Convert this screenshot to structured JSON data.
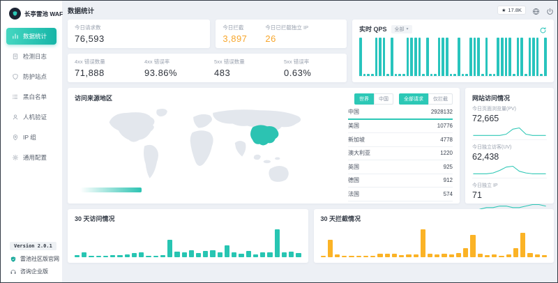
{
  "app": {
    "logo_text": "长亭雷池 WAF"
  },
  "sidebar": {
    "items": [
      {
        "label": "数据统计",
        "icon": "bar-chart-icon",
        "active": true
      },
      {
        "label": "检测日志",
        "icon": "log-icon",
        "active": false
      },
      {
        "label": "防护站点",
        "icon": "shield-icon",
        "active": false
      },
      {
        "label": "黑白名单",
        "icon": "list-icon",
        "active": false
      },
      {
        "label": "人机验证",
        "icon": "captcha-icon",
        "active": false
      },
      {
        "label": "IP 组",
        "icon": "ip-group-icon",
        "active": false
      },
      {
        "label": "通用配置",
        "icon": "gear-icon",
        "active": false
      }
    ],
    "version": "Version 2.0.1",
    "links": [
      {
        "label": "雷池社区版官网",
        "icon": "shield-badge-icon"
      },
      {
        "label": "咨询企业版",
        "icon": "headset-icon"
      }
    ]
  },
  "header": {
    "title": "数据统计",
    "github_stars": "17.8K"
  },
  "stats": {
    "requests_today": {
      "label": "今日请求数",
      "value": "76,593"
    },
    "blocks_today": {
      "label": "今日拦截",
      "value": "3,897"
    },
    "blocked_ips_today": {
      "label": "今日已拦截独立 IP",
      "value": "26"
    },
    "err4xx_count": {
      "label": "4xx 错误数量",
      "value": "71,888"
    },
    "err4xx_rate": {
      "label": "4xx 错误率",
      "value": "93.86%"
    },
    "err5xx_count": {
      "label": "5xx 错误数量",
      "value": "483"
    },
    "err5xx_rate": {
      "label": "5xx 错误率",
      "value": "0.63%"
    }
  },
  "qps": {
    "title": "实时 QPS",
    "filter_label": "全部"
  },
  "map_panel": {
    "title": "访问来源地区",
    "region_toggle": {
      "options": [
        "世界",
        "中国"
      ],
      "active": 0
    },
    "scope_toggle": {
      "options": [
        "全部请求",
        "仅拦截"
      ],
      "active": 0
    },
    "countries": [
      {
        "name": "中国",
        "value": "2928132"
      },
      {
        "name": "美国",
        "value": "10776"
      },
      {
        "name": "新加坡",
        "value": "4778"
      },
      {
        "name": "澳大利亚",
        "value": "1220"
      },
      {
        "name": "英国",
        "value": "925"
      },
      {
        "name": "德国",
        "value": "912"
      },
      {
        "name": "法国",
        "value": "574"
      }
    ]
  },
  "site_panel": {
    "title": "网站访问情况",
    "metrics": [
      {
        "key": "pv",
        "label": "今日页面浏览量(PV)",
        "value": "72,665"
      },
      {
        "key": "uv",
        "label": "今日独立访客(UV)",
        "value": "62,438"
      },
      {
        "key": "ip",
        "label": "今日独立 IP",
        "value": "71"
      }
    ]
  },
  "colors": {
    "accent_teal": "#2cc8b6",
    "qps_bar": "#28c4bd",
    "visits_bar": "#27c5b2",
    "blocks_bar": "#fbb326",
    "orange_value": "#f7a62c",
    "sparkline": "#2fc7b6"
  },
  "chart_data": {
    "qps": {
      "type": "bar",
      "title": "实时 QPS",
      "values": [
        1,
        0.06,
        0.06,
        0.06,
        1,
        1,
        1,
        0.06,
        1,
        0.06,
        0.06,
        0.06,
        1,
        1,
        1,
        1,
        0.06,
        1,
        0.06,
        0.06,
        1,
        1,
        1,
        0.06,
        0.06,
        1,
        0.06,
        0.06,
        1,
        1,
        1,
        0.06,
        1,
        0.06,
        0.06,
        1,
        1,
        1,
        1,
        0.06,
        1,
        1,
        0.06,
        1,
        1,
        1,
        0.06,
        1
      ]
    },
    "visits_30d": {
      "type": "bar",
      "title": "30 天访问情况",
      "values": [
        0.06,
        0.15,
        0.05,
        0.05,
        0.05,
        0.07,
        0.07,
        0.08,
        0.13,
        0.16,
        0.05,
        0.05,
        0.06,
        0.55,
        0.18,
        0.15,
        0.22,
        0.13,
        0.2,
        0.22,
        0.16,
        0.38,
        0.16,
        0.12,
        0.2,
        0.1,
        0.16,
        0.16,
        0.88,
        0.16,
        0.18,
        0.13
      ]
    },
    "blocks_30d": {
      "type": "bar",
      "title": "30 天拦截情况",
      "values": [
        0.05,
        0.55,
        0.08,
        0.05,
        0.05,
        0.05,
        0.05,
        0.05,
        0.12,
        0.12,
        0.12,
        0.06,
        0.08,
        0.08,
        0.88,
        0.12,
        0.1,
        0.12,
        0.1,
        0.13,
        0.3,
        0.72,
        0.12,
        0.07,
        0.1,
        0.05,
        0.1,
        0.3,
        0.78,
        0.14,
        0.1,
        0.06
      ]
    },
    "sparklines": {
      "pv": {
        "type": "line",
        "values": [
          3,
          3,
          3,
          3,
          3,
          4,
          8,
          9,
          4,
          3,
          3,
          3
        ]
      },
      "uv": {
        "type": "line",
        "values": [
          3,
          3,
          3,
          4,
          7,
          11,
          12,
          6,
          4,
          3,
          3,
          3
        ]
      },
      "ip": {
        "type": "line",
        "values": [
          2,
          4,
          5,
          5,
          6,
          6,
          5,
          5,
          6,
          7,
          7,
          6
        ]
      }
    }
  }
}
